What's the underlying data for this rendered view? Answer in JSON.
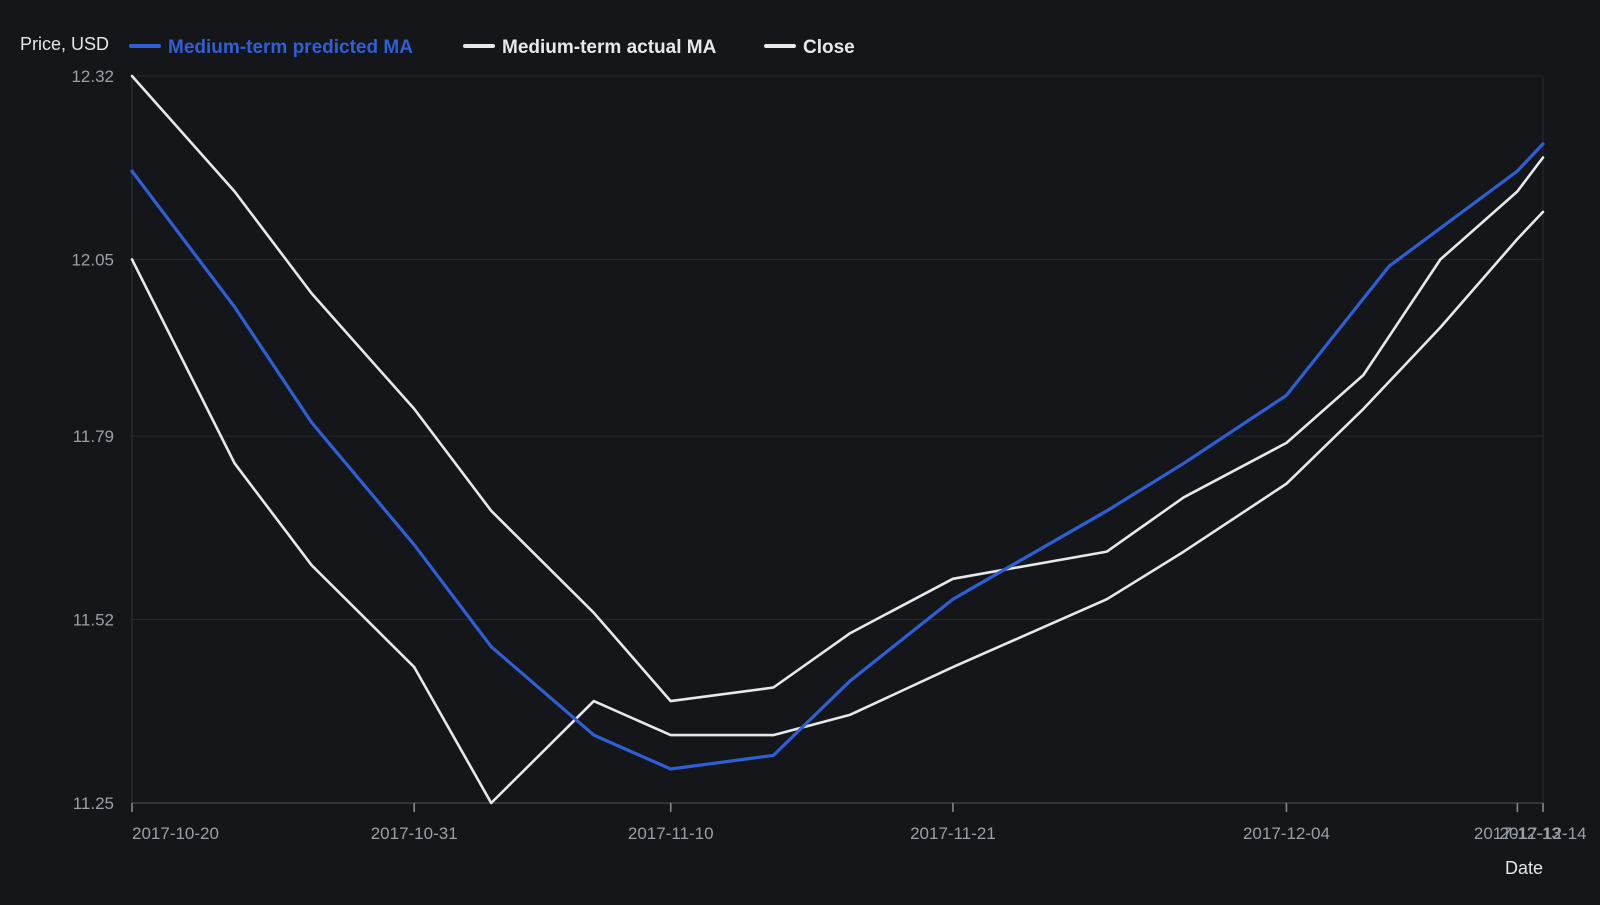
{
  "chart_data": {
    "type": "line",
    "ylabel": "Price, USD",
    "xlabel": "Date",
    "ylim": [
      11.25,
      12.32
    ],
    "yticks": [
      11.25,
      11.52,
      11.79,
      12.05,
      12.32
    ],
    "ytick_labels": [
      "11.25",
      "11.52",
      "11.79",
      "12.05",
      "12.32"
    ],
    "xlim": [
      "2017-10-20",
      "2017-12-14"
    ],
    "xticks": [
      "2017-10-20",
      "2017-10-31",
      "2017-11-10",
      "2017-11-21",
      "2017-12-04",
      "2017-12-13",
      "2017-12-14"
    ],
    "xtick_labels": [
      "2017-10-20",
      "2017-10-31",
      "2017-11-10",
      "2017-11-21",
      "2017-12-04",
      "2017-12-13",
      "2017-12-14"
    ],
    "grid": true,
    "legend_position": "top-left",
    "series": [
      {
        "name": "Medium-term predicted MA",
        "color": "#2f5fd6",
        "x": [
          "2017-10-20",
          "2017-10-24",
          "2017-10-27",
          "2017-10-31",
          "2017-11-03",
          "2017-11-07",
          "2017-11-10",
          "2017-11-14",
          "2017-11-17",
          "2017-11-21",
          "2017-11-27",
          "2017-11-30",
          "2017-12-04",
          "2017-12-08",
          "2017-12-13",
          "2017-12-14"
        ],
        "values": [
          12.18,
          11.98,
          11.81,
          11.63,
          11.48,
          11.35,
          11.3,
          11.32,
          11.43,
          11.55,
          11.68,
          11.75,
          11.85,
          12.04,
          12.18,
          12.22
        ]
      },
      {
        "name": "Medium-term actual MA",
        "color": "#e8e8e8",
        "x": [
          "2017-10-20",
          "2017-10-24",
          "2017-10-27",
          "2017-10-31",
          "2017-11-03",
          "2017-11-07",
          "2017-11-10",
          "2017-11-14",
          "2017-11-17",
          "2017-11-21",
          "2017-11-27",
          "2017-11-30",
          "2017-12-04",
          "2017-12-07",
          "2017-12-10",
          "2017-12-13",
          "2017-12-14"
        ],
        "values": [
          12.32,
          12.15,
          12.0,
          11.83,
          11.68,
          11.53,
          11.4,
          11.42,
          11.5,
          11.58,
          11.62,
          11.7,
          11.78,
          11.88,
          12.05,
          12.15,
          12.2
        ]
      },
      {
        "name": "Close",
        "color": "#e8e8e8",
        "x": [
          "2017-10-20",
          "2017-10-24",
          "2017-10-27",
          "2017-10-31",
          "2017-11-03",
          "2017-11-07",
          "2017-11-10",
          "2017-11-14",
          "2017-11-17",
          "2017-11-21",
          "2017-11-27",
          "2017-11-30",
          "2017-12-04",
          "2017-12-07",
          "2017-12-10",
          "2017-12-13",
          "2017-12-14"
        ],
        "values": [
          12.05,
          11.75,
          11.6,
          11.45,
          11.25,
          11.4,
          11.35,
          11.35,
          11.38,
          11.45,
          11.55,
          11.62,
          11.72,
          11.83,
          11.95,
          12.08,
          12.12
        ]
      }
    ]
  }
}
